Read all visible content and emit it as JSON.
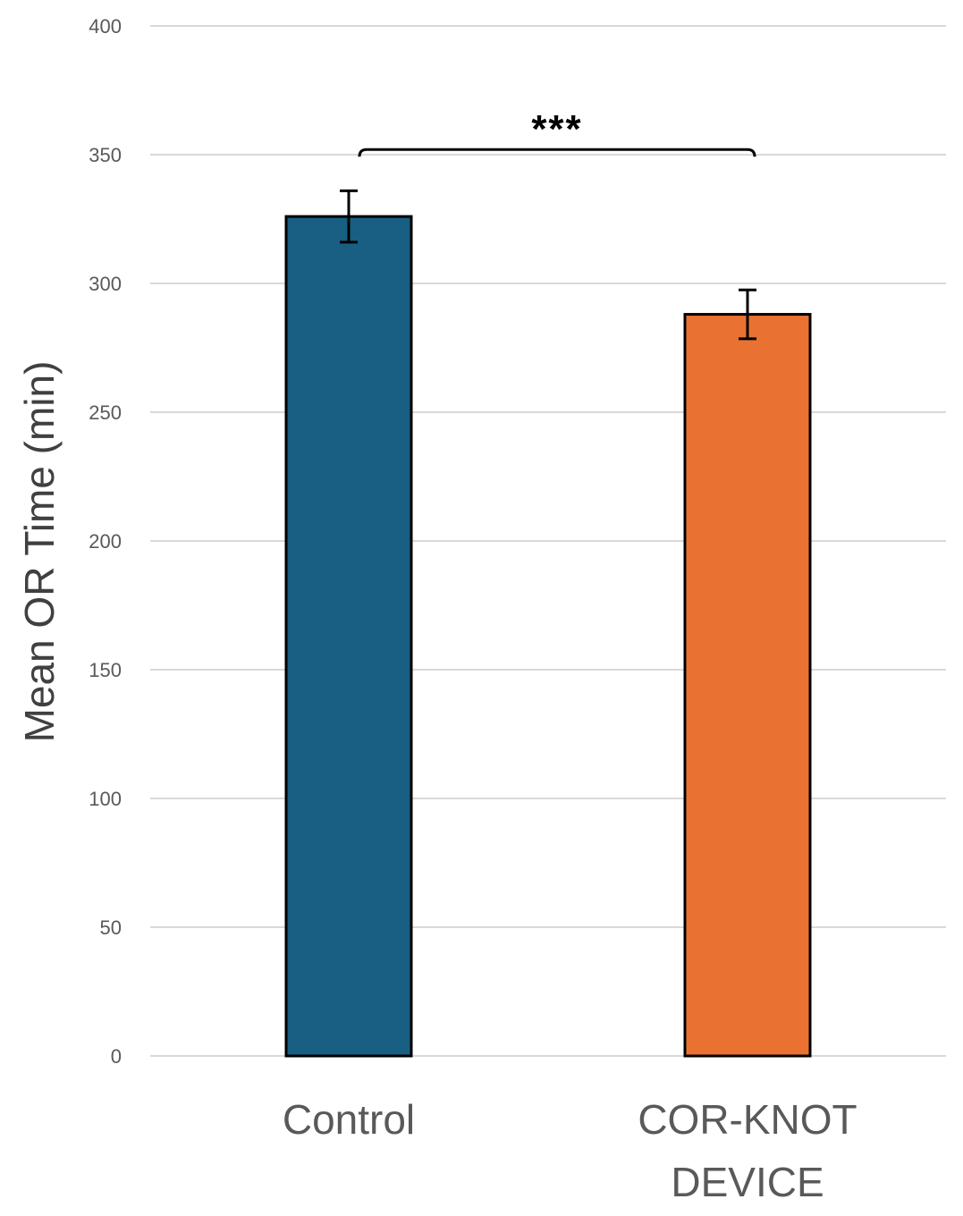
{
  "chart_data": {
    "type": "bar",
    "title": "",
    "xlabel": "",
    "ylabel": "Mean OR Time (min)",
    "ylim": [
      0,
      400
    ],
    "yticks": [
      0,
      50,
      100,
      150,
      200,
      250,
      300,
      350,
      400
    ],
    "grid": true,
    "legend": "none",
    "categories": [
      [
        "Control"
      ],
      [
        "COR-KNOT",
        "DEVICE"
      ]
    ],
    "values": [
      326,
      288
    ],
    "error": [
      10,
      9.5
    ],
    "colors": [
      "#185F83",
      "#E97232"
    ],
    "edge_color": "#000000",
    "grid_color": "#D9D9D9",
    "annotation": {
      "label": "***",
      "between": [
        0,
        1
      ],
      "y_value": 352
    }
  }
}
